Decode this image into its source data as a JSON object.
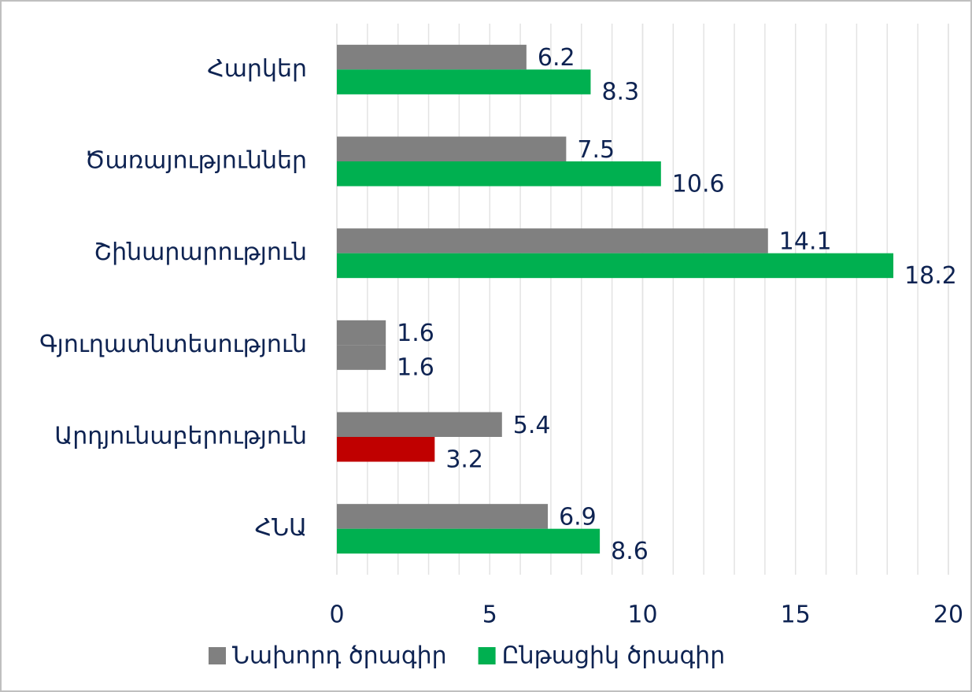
{
  "chart_data": {
    "type": "hbar",
    "categories": [
      "Հարկեր",
      "Ծառայություններ",
      "Շինարարություն",
      "Գյուղատնտեսություն",
      "Արդյունաբերություն",
      "ՀՆԱ"
    ],
    "series": [
      {
        "name": "Նախորդ ծրագիր",
        "color": "#808080",
        "values": [
          6.2,
          7.5,
          14.1,
          1.6,
          5.4,
          6.9
        ]
      },
      {
        "name": "Ընթացիկ ծրագիր",
        "color": "#00b050",
        "colors": [
          "#00b050",
          "#00b050",
          "#00b050",
          "#808080",
          "#c00000",
          "#00b050"
        ],
        "values": [
          8.3,
          10.6,
          18.2,
          1.6,
          3.2,
          8.6
        ]
      }
    ],
    "xlim": [
      0,
      20
    ],
    "xticks": [
      0,
      5,
      10,
      15,
      20
    ],
    "grid": true,
    "grid_minor_step": 1,
    "legend": "bottom"
  }
}
